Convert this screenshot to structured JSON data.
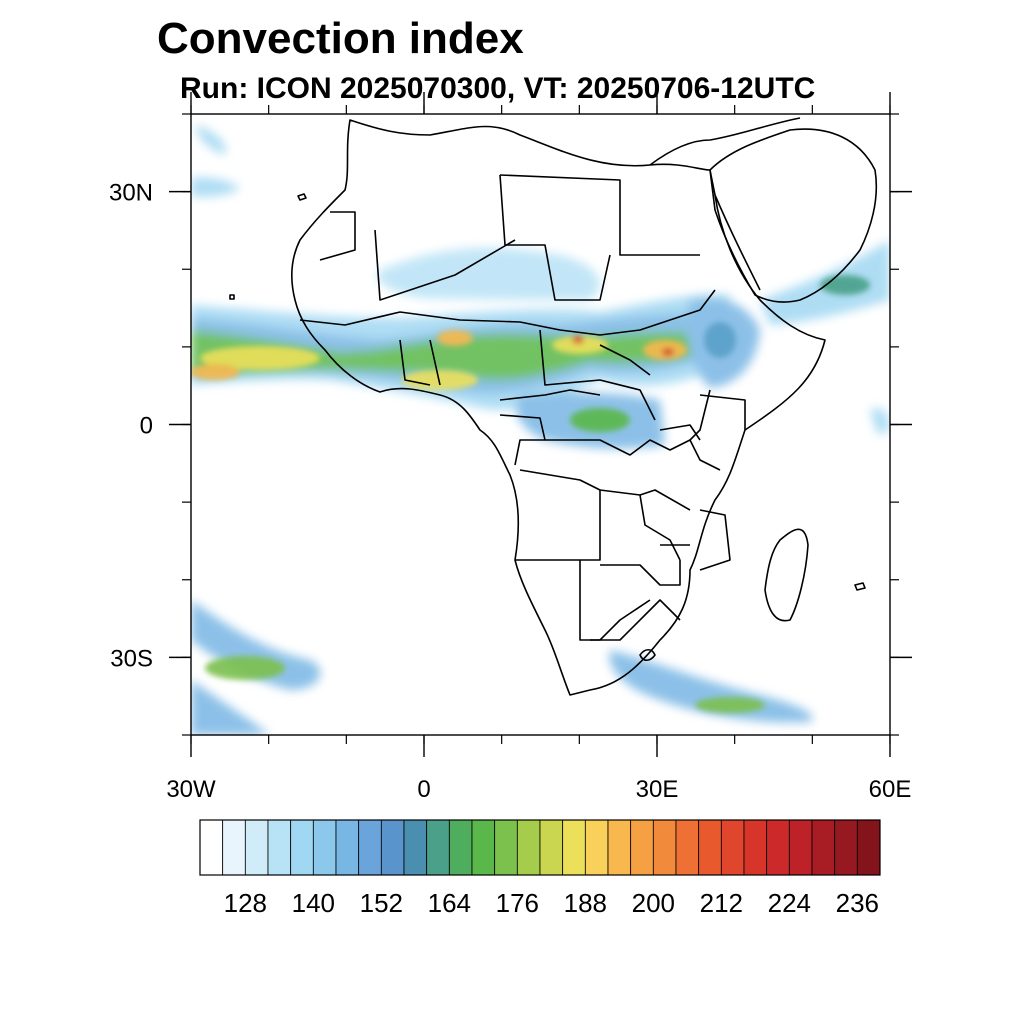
{
  "header": {
    "title": "Convection index",
    "subtitle": "Run: ICON 2025070300,  VT: 20250706-12UTC"
  },
  "map": {
    "lon_range": [
      -30,
      60
    ],
    "lat_range": [
      -40,
      40
    ],
    "x_ticks": [
      {
        "lon": -30,
        "label": "30W"
      },
      {
        "lon": 0,
        "label": "0"
      },
      {
        "lon": 30,
        "label": "30E"
      },
      {
        "lon": 60,
        "label": "60E"
      }
    ],
    "y_ticks": [
      {
        "lat": 30,
        "label": "30N"
      },
      {
        "lat": 0,
        "label": "0"
      },
      {
        "lat": -30,
        "label": "30S"
      }
    ],
    "minor_tick_step_deg": 10
  },
  "colorbar": {
    "levels": [
      120,
      124,
      128,
      132,
      136,
      140,
      144,
      148,
      152,
      156,
      160,
      164,
      168,
      172,
      176,
      180,
      184,
      188,
      192,
      196,
      200,
      204,
      208,
      212,
      216,
      220,
      224,
      228,
      232,
      236
    ],
    "colors": [
      "#ffffff",
      "#e8f5fc",
      "#d0ecf8",
      "#b8e2f6",
      "#a0d7f2",
      "#8cc8ec",
      "#78b6e4",
      "#6aa4da",
      "#5a94cc",
      "#4a8eb0",
      "#4aa088",
      "#4fae5e",
      "#5ab84a",
      "#7cc04e",
      "#a6cc4c",
      "#cad650",
      "#ece05a",
      "#f8d05a",
      "#f8b84e",
      "#f6a044",
      "#f28a3c",
      "#ee7034",
      "#e85a2e",
      "#e0462c",
      "#d8352a",
      "#cc2a2a",
      "#bc2228",
      "#a81c24",
      "#961820",
      "#84141c"
    ],
    "labels": [
      "128",
      "140",
      "152",
      "164",
      "176",
      "188",
      "200",
      "212",
      "224",
      "236"
    ]
  }
}
